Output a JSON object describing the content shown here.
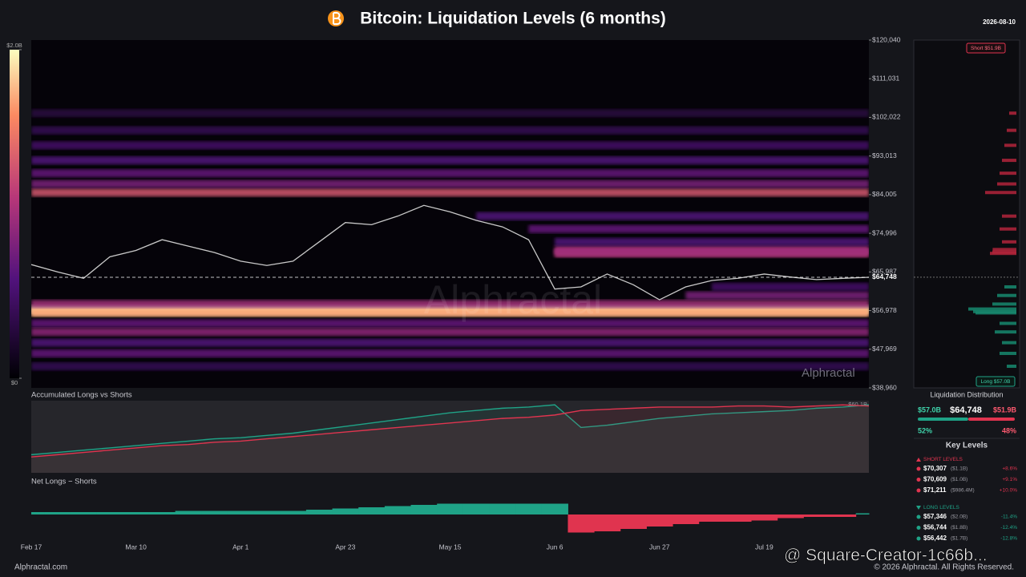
{
  "header": {
    "title": "Bitcoin: Liquidation Levels (6 months)",
    "date": "2026-08-10"
  },
  "watermark": "Alphractal",
  "chart_data": [
    {
      "type": "heatmap",
      "categories": [
        "Feb 17",
        null,
        null,
        null,
        "Mar 10",
        null,
        null,
        null,
        "Apr 1",
        null,
        null,
        null,
        "Apr 23",
        null,
        null,
        null,
        "May 15",
        null,
        null,
        null,
        "Jun 6",
        null,
        null,
        null,
        "Jun 27",
        null,
        null,
        null,
        "Jul 19",
        null,
        null,
        null,
        null
      ],
      "values": [
        67700,
        66000,
        64500,
        69500,
        71000,
        73500,
        72000,
        70500,
        68500,
        67500,
        68500,
        73000,
        77500,
        77000,
        79000,
        81500,
        80000,
        78000,
        76500,
        73500,
        62000,
        62500,
        65500,
        63000,
        59500,
        62500,
        64000,
        64500,
        65500,
        64800,
        64200,
        64500,
        64748
      ],
      "color": "#c9c9c9",
      "current_price": {
        "value": 64748,
        "label": "$64,748"
      },
      "ylim": [
        38960,
        120040
      ],
      "yticks": [
        {
          "value": 38960,
          "label": "$38,960"
        },
        {
          "value": 47969,
          "label": "$47,969"
        },
        {
          "value": 56978,
          "label": "$56,978"
        },
        {
          "value": 65987,
          "label": "$65,987"
        },
        {
          "value": 74996,
          "label": "$74,996"
        },
        {
          "value": 84005,
          "label": "$84,005"
        },
        {
          "value": 93013,
          "label": "$93,013"
        },
        {
          "value": 102022,
          "label": "$102,022"
        },
        {
          "value": 111031,
          "label": "$111,031"
        },
        {
          "value": 120040,
          "label": "$120,040"
        }
      ],
      "bands": {
        "prices": [
          57346,
          56744,
          56442,
          58500,
          60500,
          54000,
          52000,
          49500,
          47000,
          44000,
          62500,
          70307,
          70609,
          71211,
          73000,
          76000,
          79000,
          84500,
          86500,
          89000,
          92000,
          95500,
          99000,
          103000
        ],
        "values": [
          2.0,
          1.8,
          1.7,
          1.0,
          0.8,
          0.7,
          0.9,
          0.6,
          0.7,
          0.4,
          0.5,
          1.1,
          1.0,
          0.9864,
          0.6,
          0.7,
          0.6,
          1.3,
          0.8,
          0.7,
          0.6,
          0.5,
          0.4,
          0.3
        ]
      },
      "colorbar": {
        "lim": [
          0,
          2
        ],
        "ticks": [
          {
            "value": 2,
            "label": "$2.0B"
          },
          {
            "value": 0,
            "label": "$0"
          }
        ]
      }
    },
    {
      "type": "area",
      "title": "Accumulated Longs vs Shorts",
      "ylim": [
        0,
        60.1
      ],
      "yticks": [
        {
          "value": 60.1,
          "label": "$60.1B"
        }
      ],
      "series": [
        {
          "color": "#1fa387",
          "values": [
            16,
            18,
            20,
            22,
            24,
            26,
            28,
            30,
            31,
            33,
            35,
            38,
            41,
            44,
            47,
            50,
            53,
            55,
            57,
            58,
            60,
            40,
            42,
            45,
            48,
            50,
            52,
            53,
            54,
            55,
            57,
            58,
            60
          ]
        },
        {
          "color": "#e0344f",
          "values": [
            14,
            16,
            18,
            20,
            22,
            24,
            25,
            27,
            28,
            30,
            32,
            34,
            36,
            38,
            40,
            42,
            44,
            46,
            48,
            49,
            51,
            55,
            56,
            57,
            58,
            58,
            58,
            59,
            59,
            58,
            59,
            60,
            59
          ]
        }
      ]
    },
    {
      "type": "bar",
      "title": "Net Longs − Shorts",
      "ylim": [
        -20,
        20
      ],
      "positive_color": "#1fa387",
      "negative_color": "#e0344f",
      "values": [
        2,
        2,
        2,
        2,
        2,
        2,
        3,
        3,
        3,
        3,
        3,
        4,
        5,
        6,
        7,
        8,
        9,
        9,
        9,
        9,
        9,
        -15,
        -14,
        -12,
        -10,
        -8,
        -6,
        -6,
        -5,
        -3,
        -2,
        -2,
        1
      ]
    }
  ],
  "distribution": {
    "short_box": "Short $51.9B",
    "long_box": "Long $57.0B",
    "title": "Liquidation Distribution",
    "long_total": "$57.0B",
    "short_total": "$51.9B",
    "long_share": {
      "value": 52,
      "label": "52%"
    },
    "short_share": {
      "value": 48,
      "label": "48%"
    }
  },
  "key_levels": {
    "title": "Key Levels",
    "short_heading": "SHORT LEVELS",
    "short": [
      [
        "$70,307",
        "($1.1B)",
        "+8.6%"
      ],
      [
        "$70,609",
        "($1.0B)",
        "+9.1%"
      ],
      [
        "$71,211",
        "($986.4M)",
        "+10.0%"
      ]
    ],
    "long_heading": "LONG LEVELS",
    "long": [
      [
        "$57,346",
        "($2.0B)",
        "-11.4%"
      ],
      [
        "$56,744",
        "($1.8B)",
        "-12.4%"
      ],
      [
        "$56,442",
        "($1.7B)",
        "-12.8%"
      ]
    ]
  },
  "footer": {
    "site": "Alphractal.com",
    "copyright": "© 2026 Alphractal. All Rights Reserved.",
    "overlay": "@ Square-Creator-1c66b..."
  }
}
